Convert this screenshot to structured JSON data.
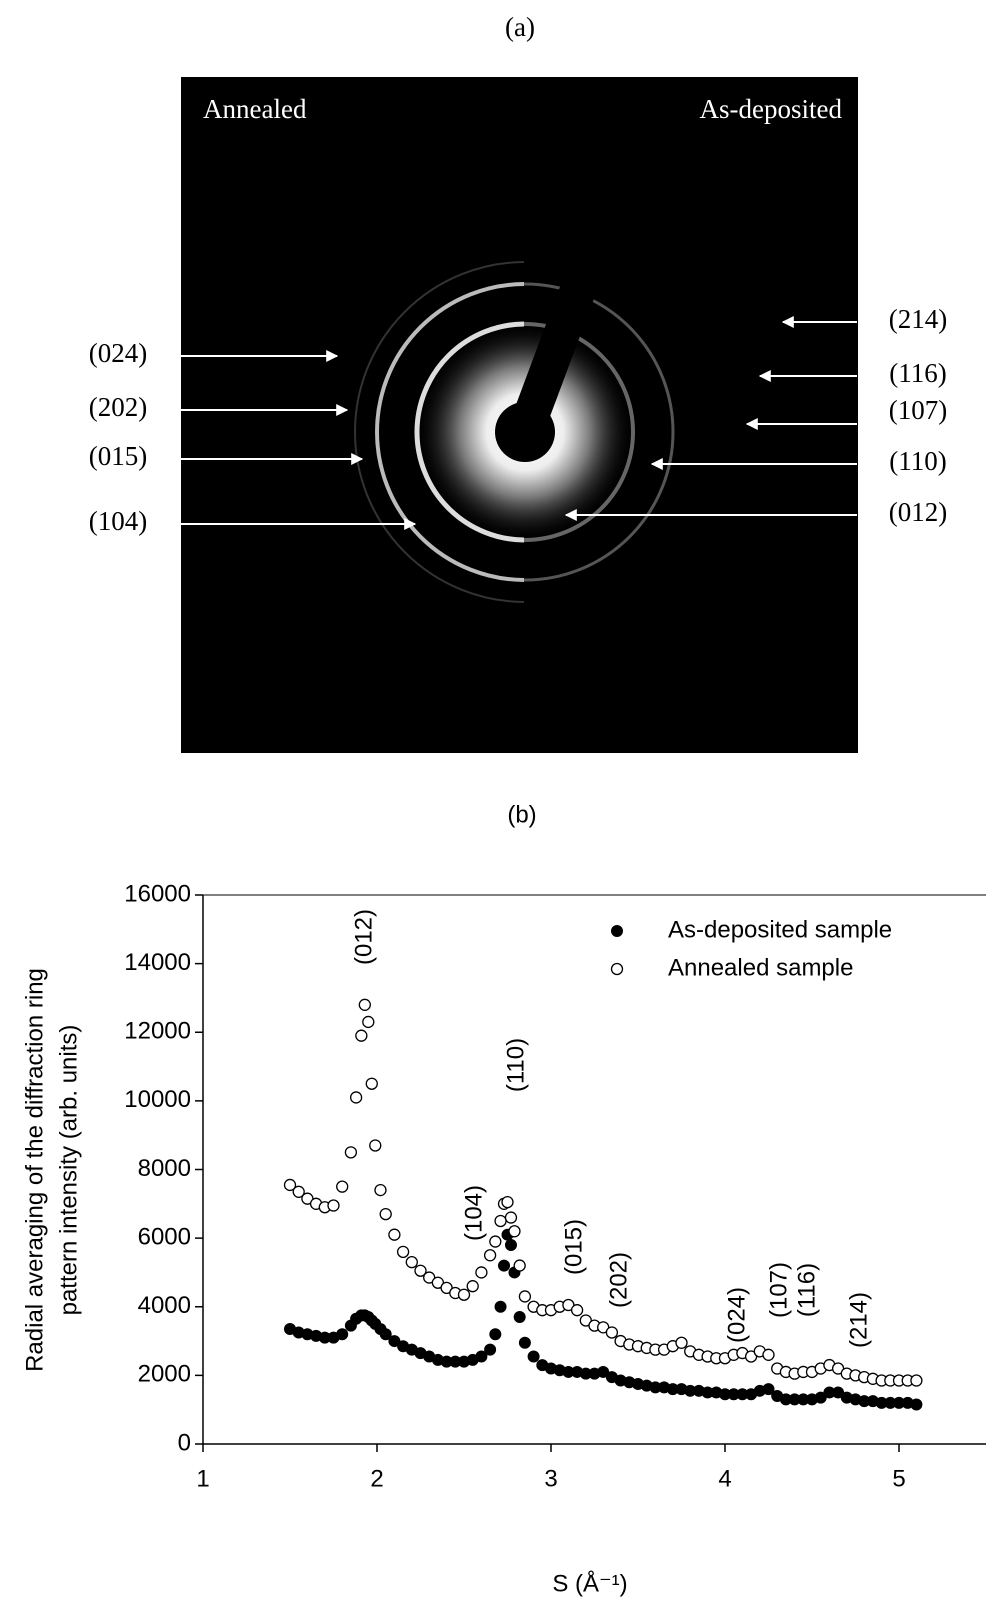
{
  "panel_a": {
    "label": "(a)",
    "left_title": "Annealed",
    "right_title": "As-deposited",
    "left_labels": [
      "(024)",
      "(202)",
      "(015)",
      "(104)"
    ],
    "right_labels": [
      "(214)",
      "(116)",
      "(107)",
      "(110)",
      "(012)"
    ]
  },
  "chart_data": {
    "type": "scatter",
    "subtitle": "(b)",
    "xlabel": "S (Å⁻¹)",
    "ylabel": [
      "Radial averaging of the diffraction ring",
      "pattern intensity (arb. units)"
    ],
    "x": [
      1.5,
      1.55,
      1.6,
      1.65,
      1.7,
      1.75,
      1.8,
      1.85,
      1.88,
      1.91,
      1.93,
      1.95,
      1.97,
      1.99,
      2.02,
      2.05,
      2.1,
      2.15,
      2.2,
      2.25,
      2.3,
      2.35,
      2.4,
      2.45,
      2.5,
      2.55,
      2.6,
      2.65,
      2.68,
      2.71,
      2.73,
      2.75,
      2.77,
      2.79,
      2.82,
      2.85,
      2.9,
      2.95,
      3.0,
      3.05,
      3.1,
      3.15,
      3.2,
      3.25,
      3.3,
      3.35,
      3.4,
      3.45,
      3.5,
      3.55,
      3.6,
      3.65,
      3.7,
      3.75,
      3.8,
      3.85,
      3.9,
      3.95,
      4.0,
      4.05,
      4.1,
      4.15,
      4.2,
      4.25,
      4.3,
      4.35,
      4.4,
      4.45,
      4.5,
      4.55,
      4.6,
      4.65,
      4.7,
      4.75,
      4.8,
      4.85,
      4.9,
      4.95,
      5.0,
      5.05,
      5.1
    ],
    "series": [
      {
        "name": "As-deposited sample",
        "color": "#000000",
        "marker": "filled",
        "values": [
          3350,
          3250,
          3200,
          3150,
          3100,
          3100,
          3200,
          3450,
          3650,
          3750,
          3750,
          3700,
          3600,
          3500,
          3350,
          3200,
          3000,
          2850,
          2750,
          2650,
          2550,
          2450,
          2400,
          2400,
          2400,
          2450,
          2550,
          2750,
          3200,
          4000,
          5200,
          6100,
          5800,
          5000,
          3700,
          2950,
          2550,
          2300,
          2200,
          2150,
          2100,
          2100,
          2050,
          2050,
          2100,
          1950,
          1850,
          1800,
          1750,
          1700,
          1650,
          1650,
          1600,
          1600,
          1550,
          1550,
          1500,
          1500,
          1450,
          1450,
          1450,
          1450,
          1550,
          1600,
          1400,
          1300,
          1300,
          1300,
          1300,
          1350,
          1500,
          1500,
          1350,
          1300,
          1250,
          1250,
          1200,
          1200,
          1200,
          1200,
          1150
        ]
      },
      {
        "name": "Annealed sample",
        "color": "#000000",
        "marker": "open",
        "values": [
          7550,
          7350,
          7150,
          7000,
          6900,
          6950,
          7500,
          8500,
          10100,
          11900,
          12800,
          12300,
          10500,
          8700,
          7400,
          6700,
          6100,
          5600,
          5300,
          5050,
          4850,
          4700,
          4550,
          4400,
          4350,
          4600,
          5000,
          5500,
          5900,
          6500,
          7000,
          7050,
          6600,
          6200,
          5200,
          4300,
          4000,
          3900,
          3900,
          4000,
          4050,
          3900,
          3600,
          3450,
          3400,
          3250,
          3000,
          2900,
          2850,
          2800,
          2750,
          2750,
          2850,
          2950,
          2700,
          2600,
          2550,
          2500,
          2500,
          2600,
          2650,
          2550,
          2700,
          2600,
          2200,
          2100,
          2050,
          2100,
          2100,
          2200,
          2300,
          2200,
          2050,
          2000,
          1950,
          1900,
          1850,
          1850,
          1850,
          1850,
          1850
        ]
      }
    ],
    "annotations": [
      "(012)",
      "(104)",
      "(110)",
      "(015)",
      "(202)",
      "(024)",
      "(107)",
      "(116)",
      "(214)"
    ],
    "xlim": [
      1,
      5.5
    ],
    "xticks": [
      1,
      2,
      3,
      4,
      5
    ],
    "ylim": [
      0,
      16000
    ],
    "yticks": [
      0,
      2000,
      4000,
      6000,
      8000,
      10000,
      12000,
      14000,
      16000
    ],
    "legend": "upper right"
  }
}
